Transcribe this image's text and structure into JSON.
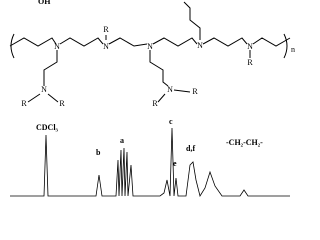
{
  "structure": {
    "top_label": "OH",
    "atoms": [
      "N",
      "N",
      "N",
      "N",
      "N",
      "N",
      "N",
      "N"
    ],
    "r_labels": [
      "R",
      "R",
      "R",
      "R",
      "R",
      "R",
      "R"
    ],
    "repeat_subscript": "n"
  },
  "spectrum": {
    "peak_labels": [
      "CDCl₃",
      "b",
      "a",
      "c",
      "e",
      "d,f",
      "-CH₂-CH₂-"
    ]
  }
}
